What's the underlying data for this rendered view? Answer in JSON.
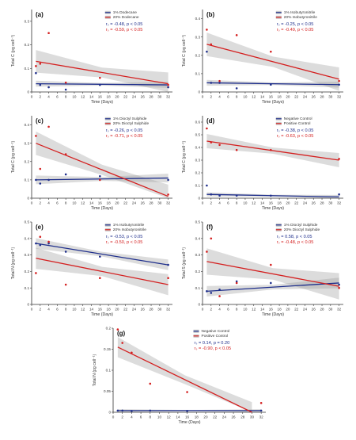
{
  "chart_data": [
    {
      "type": "scatter",
      "panel": "(a)",
      "xlabel": "Time (Days)",
      "ylabel": "Total C (pg cell⁻¹)",
      "xlim": [
        0,
        33
      ],
      "ylim": [
        0,
        0.35
      ],
      "xticks": [
        0,
        2,
        4,
        6,
        8,
        10,
        12,
        14,
        16,
        18,
        20,
        22,
        24,
        26,
        28,
        30,
        32
      ],
      "yticks": [
        0,
        0.1,
        0.2,
        0.3
      ],
      "series": [
        {
          "name": "1% Dodecane",
          "color": "#1f2f8c",
          "points": [
            [
              1,
              0.08
            ],
            [
              2,
              0.03
            ],
            [
              4,
              0.02
            ],
            [
              8,
              0.01
            ],
            [
              16,
              0.03
            ],
            [
              32,
              0.02
            ]
          ],
          "fit": [
            [
              1,
              0.035
            ],
            [
              32,
              0.03
            ]
          ],
          "band": 0.008
        },
        {
          "name": "20% Dodecane",
          "color": "#d42020",
          "points": [
            [
              1,
              0.11
            ],
            [
              2,
              0.12
            ],
            [
              4,
              0.25
            ],
            [
              8,
              0.04
            ],
            [
              16,
              0.06
            ],
            [
              32,
              0.03
            ]
          ],
          "fit": [
            [
              1,
              0.13
            ],
            [
              32,
              0.035
            ]
          ],
          "band": 0.03
        }
      ],
      "stats": [
        {
          "text": "rₛ = -0.48, p < 0.05",
          "color": "#1f2f8c"
        },
        {
          "text": "rₛ = -0.59, p < 0.05",
          "color": "#d42020"
        }
      ]
    },
    {
      "type": "scatter",
      "panel": "(b)",
      "xlabel": "Time (Days)",
      "ylabel": "Total C (pg cell⁻¹)",
      "xlim": [
        0,
        33
      ],
      "ylim": [
        0,
        0.45
      ],
      "xticks": [
        0,
        2,
        4,
        6,
        8,
        10,
        12,
        14,
        16,
        18,
        20,
        22,
        24,
        26,
        28,
        30,
        32
      ],
      "yticks": [
        0,
        0.1,
        0.2,
        0.3,
        0.4
      ],
      "series": [
        {
          "name": "1% Isobutyronitrile",
          "color": "#1f2f8c",
          "points": [
            [
              1,
              0.22
            ],
            [
              2,
              0.05
            ],
            [
              4,
              0.05
            ],
            [
              8,
              0.02
            ],
            [
              16,
              0.04
            ],
            [
              32,
              0.04
            ]
          ],
          "fit": [
            [
              1,
              0.05
            ],
            [
              32,
              0.04
            ]
          ],
          "band": 0.01
        },
        {
          "name": "20% Isobutyronitrile",
          "color": "#d42020",
          "points": [
            [
              1,
              0.34
            ],
            [
              2,
              0.26
            ],
            [
              4,
              0.06
            ],
            [
              8,
              0.31
            ],
            [
              16,
              0.22
            ],
            [
              32,
              0.06
            ]
          ],
          "fit": [
            [
              1,
              0.26
            ],
            [
              32,
              0.07
            ]
          ],
          "band": 0.04
        }
      ],
      "stats": [
        {
          "text": "rₛ = -0.25, p < 0.05",
          "color": "#1f2f8c"
        },
        {
          "text": "rₛ = -0.49, p < 0.05",
          "color": "#d42020"
        }
      ]
    },
    {
      "type": "scatter",
      "panel": "(c)",
      "xlabel": "Time (Days)",
      "ylabel": "Total C (pg cell⁻¹)",
      "xlim": [
        0,
        33
      ],
      "ylim": [
        0,
        0.45
      ],
      "xticks": [
        0,
        2,
        4,
        6,
        8,
        10,
        12,
        14,
        16,
        18,
        20,
        22,
        24,
        26,
        28,
        30,
        32
      ],
      "yticks": [
        0,
        0.1,
        0.2,
        0.3,
        0.4
      ],
      "series": [
        {
          "name": "1% Dioctyl Sulphide",
          "color": "#1f2f8c",
          "points": [
            [
              1,
              0.1
            ],
            [
              2,
              0.08
            ],
            [
              4,
              0.1
            ],
            [
              8,
              0.13
            ],
            [
              16,
              0.12
            ],
            [
              32,
              0.1
            ]
          ],
          "fit": [
            [
              1,
              0.1
            ],
            [
              32,
              0.11
            ]
          ],
          "band": 0.015
        },
        {
          "name": "20% Dioctyl Sulphide",
          "color": "#d42020",
          "points": [
            [
              1,
              0.34
            ],
            [
              2,
              0.16
            ],
            [
              4,
              0.39
            ],
            [
              8,
              0.24
            ],
            [
              16,
              0.1
            ],
            [
              32,
              0.02
            ]
          ],
          "fit": [
            [
              1,
              0.3
            ],
            [
              32,
              0.01
            ]
          ],
          "band": 0.04
        }
      ],
      "stats": [
        {
          "text": "rₛ = -0.26, p < 0.05",
          "color": "#1f2f8c"
        },
        {
          "text": "rₛ = -0.71, p < 0.05",
          "color": "#d42020"
        }
      ]
    },
    {
      "type": "scatter",
      "panel": "(d)",
      "xlabel": "Time (Days)",
      "ylabel": "Total C (pg cell⁻¹)",
      "xlim": [
        0,
        33
      ],
      "ylim": [
        0,
        0.65
      ],
      "xticks": [
        0,
        2,
        4,
        6,
        8,
        10,
        12,
        14,
        16,
        18,
        20,
        22,
        24,
        26,
        28,
        30,
        32
      ],
      "yticks": [
        0,
        0.1,
        0.2,
        0.3,
        0.4,
        0.5,
        0.6
      ],
      "series": [
        {
          "name": "Negative Control",
          "color": "#1f2f8c",
          "points": [
            [
              1,
              0.1
            ],
            [
              2,
              0.03
            ],
            [
              4,
              0.02
            ],
            [
              8,
              0.02
            ],
            [
              16,
              0.02
            ],
            [
              32,
              0.03
            ]
          ],
          "fit": [
            [
              1,
              0.03
            ],
            [
              32,
              0.01
            ]
          ],
          "band": 0.01
        },
        {
          "name": "Positive Control",
          "color": "#d42020",
          "points": [
            [
              1,
              0.55
            ],
            [
              2,
              0.44
            ],
            [
              4,
              0.42
            ],
            [
              8,
              0.38
            ],
            [
              16,
              0.38
            ],
            [
              32,
              0.31
            ]
          ],
          "fit": [
            [
              1,
              0.45
            ],
            [
              32,
              0.3
            ]
          ],
          "band": 0.035
        }
      ],
      "stats": [
        {
          "text": "rₛ = -0.38, p < 0.05",
          "color": "#1f2f8c"
        },
        {
          "text": "rₛ = -0.63, p < 0.05",
          "color": "#d42020"
        }
      ]
    },
    {
      "type": "scatter",
      "panel": "(e)",
      "xlabel": "Time (Days)",
      "ylabel": "Total N (pg cell⁻¹)",
      "xlim": [
        0,
        33
      ],
      "ylim": [
        0,
        0.5
      ],
      "xticks": [
        0,
        2,
        4,
        6,
        8,
        10,
        12,
        14,
        16,
        18,
        20,
        22,
        24,
        26,
        28,
        30,
        32
      ],
      "yticks": [
        0,
        0.1,
        0.2,
        0.3,
        0.4,
        0.5
      ],
      "series": [
        {
          "name": "1% Isobutyronitrile",
          "color": "#1f2f8c",
          "points": [
            [
              1,
              0.37
            ],
            [
              2,
              0.36
            ],
            [
              4,
              0.37
            ],
            [
              8,
              0.32
            ],
            [
              16,
              0.29
            ],
            [
              32,
              0.24
            ]
          ],
          "fit": [
            [
              1,
              0.37
            ],
            [
              32,
              0.24
            ]
          ],
          "band": 0.02
        },
        {
          "name": "20% Isobutyronitrile",
          "color": "#d42020",
          "points": [
            [
              1,
              0.19
            ],
            [
              2,
              0.41
            ],
            [
              4,
              0.38
            ],
            [
              8,
              0.12
            ],
            [
              16,
              0.16
            ],
            [
              32,
              0.16
            ]
          ],
          "fit": [
            [
              1,
              0.28
            ],
            [
              32,
              0.12
            ]
          ],
          "band": 0.04
        }
      ],
      "stats": [
        {
          "text": "rₛ = -0.53, p < 0.05",
          "color": "#1f2f8c"
        },
        {
          "text": "rₛ = -0.50, p < 0.05",
          "color": "#d42020"
        }
      ]
    },
    {
      "type": "scatter",
      "panel": "(f)",
      "xlabel": "Time (Days)",
      "ylabel": "Total S (pg cell⁻¹)",
      "xlim": [
        0,
        33
      ],
      "ylim": [
        0,
        0.5
      ],
      "xticks": [
        0,
        2,
        4,
        6,
        8,
        10,
        12,
        14,
        16,
        18,
        20,
        22,
        24,
        26,
        28,
        30,
        32
      ],
      "yticks": [
        0,
        0.1,
        0.2,
        0.3,
        0.4,
        0.5
      ],
      "series": [
        {
          "name": "1% Dioctyl Sulphide",
          "color": "#1f2f8c",
          "points": [
            [
              1,
              0.08
            ],
            [
              2,
              0.07
            ],
            [
              4,
              0.09
            ],
            [
              8,
              0.14
            ],
            [
              16,
              0.13
            ],
            [
              32,
              0.12
            ]
          ],
          "fit": [
            [
              1,
              0.08
            ],
            [
              32,
              0.13
            ]
          ],
          "band": 0.02
        },
        {
          "name": "20% Dioctyl Sulphide",
          "color": "#d42020",
          "points": [
            [
              1,
              0.32
            ],
            [
              2,
              0.4
            ],
            [
              4,
              0.05
            ],
            [
              8,
              0.13
            ],
            [
              16,
              0.24
            ],
            [
              32,
              0.1
            ]
          ],
          "fit": [
            [
              1,
              0.26
            ],
            [
              32,
              0.11
            ]
          ],
          "band": 0.05
        }
      ],
      "stats": [
        {
          "text": "rₛ = 0.58, p < 0.05",
          "color": "#1f2f8c"
        },
        {
          "text": "rₛ = -0.48, p < 0.05",
          "color": "#d42020"
        }
      ]
    },
    {
      "type": "scatter",
      "panel": "(g)",
      "xlabel": "Time (Days)",
      "ylabel": "Total N (pg cell⁻¹)",
      "xlim": [
        0,
        33
      ],
      "ylim": [
        0,
        0.2
      ],
      "xticks": [
        0,
        2,
        4,
        6,
        8,
        10,
        12,
        14,
        16,
        18,
        20,
        22,
        24,
        26,
        28,
        30,
        32
      ],
      "yticks": [
        0,
        0.05,
        0.1,
        0.15,
        0.2
      ],
      "series": [
        {
          "name": "Negative Control",
          "color": "#1f2f8c",
          "points": [
            [
              1,
              0.004
            ],
            [
              2,
              0.004
            ],
            [
              4,
              0.003
            ],
            [
              8,
              0.004
            ],
            [
              16,
              0.003
            ],
            [
              32,
              0.004
            ]
          ],
          "fit": [
            [
              1,
              0.004
            ],
            [
              32,
              0.004
            ]
          ],
          "band": 0.002
        },
        {
          "name": "Positive Control",
          "color": "#d42020",
          "points": [
            [
              1,
              0.197
            ],
            [
              2,
              0.165
            ],
            [
              4,
              0.142
            ],
            [
              8,
              0.068
            ],
            [
              16,
              0.048
            ],
            [
              32,
              0.022
            ]
          ],
          "fit": [
            [
              1,
              0.155
            ],
            [
              30,
              0.0
            ]
          ],
          "band": 0.015
        }
      ],
      "stats": [
        {
          "text": "rₛ = 0.14, p = 0.20",
          "color": "#1f2f8c"
        },
        {
          "text": "rₛ = -0.90, p < 0.05",
          "color": "#d42020"
        }
      ]
    }
  ]
}
